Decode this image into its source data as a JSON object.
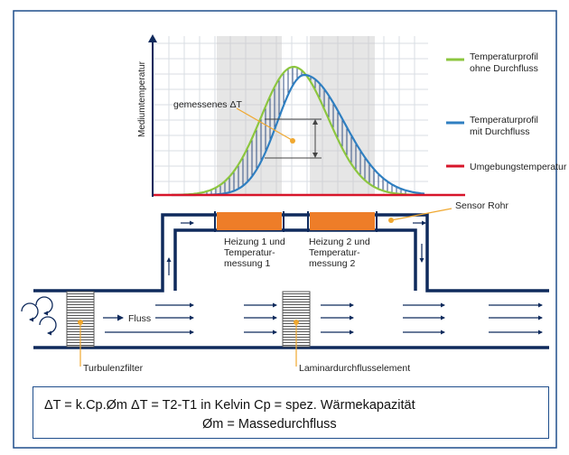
{
  "chart": {
    "ylabel": "Mediumtemperatur",
    "measured_dt_label": "gemessenes ΔT"
  },
  "legend": [
    {
      "line1": "Temperaturprofil",
      "line2": "ohne Durchfluss",
      "color": "#8cc63f"
    },
    {
      "line1": "Temperaturprofil",
      "line2": "mit Durchfluss",
      "color": "#2f7fc1"
    },
    {
      "line1": "Umgebungstemperatur",
      "line2": "",
      "color": "#d7152a"
    }
  ],
  "labels": {
    "sensor_tube": "Sensor Rohr",
    "heater1_l1": "Heizung 1 und",
    "heater1_l2": "Temperatur-",
    "heater1_l3": "messung 1",
    "heater2_l1": "Heizung 2 und",
    "heater2_l2": "Temperatur-",
    "heater2_l3": "messung 2",
    "flow": "Fluss",
    "turbulence_filter": "Turbulenzfilter",
    "laminar_element": "Laminardurchflusselement"
  },
  "formula": {
    "line1": "ΔT = k.Cp.Øm   ΔT = T2-T1 in Kelvin   Cp = spez. Wärmekapazität",
    "line2": "Øm = Massedurchfluss"
  },
  "colors": {
    "frame": "#1f4e8c",
    "pipe": "#0f2a5c",
    "heater": "#ee7d28",
    "callout": "#f0a830",
    "grid": "#d9dde3",
    "no_flow_curve": "#8cc63f",
    "flow_curve": "#2f7fc1",
    "ambient": "#d7152a"
  }
}
